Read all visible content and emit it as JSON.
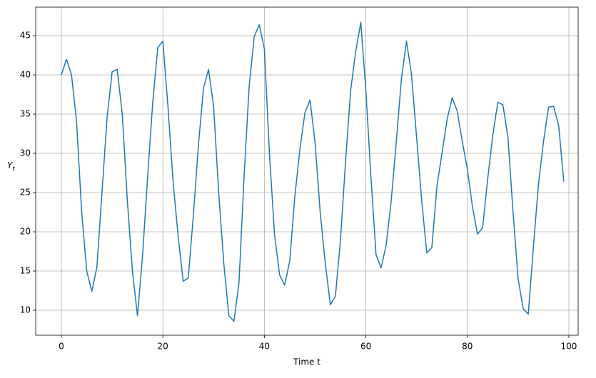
{
  "chart_data": {
    "type": "line",
    "xlabel": "Time t",
    "ylabel": "Yt",
    "x": [
      0,
      1,
      2,
      3,
      4,
      5,
      6,
      7,
      8,
      9,
      10,
      11,
      12,
      13,
      14,
      15,
      16,
      17,
      18,
      19,
      20,
      21,
      22,
      23,
      24,
      25,
      26,
      27,
      28,
      29,
      30,
      31,
      32,
      33,
      34,
      35,
      36,
      37,
      38,
      39,
      40,
      41,
      42,
      43,
      44,
      45,
      46,
      47,
      48,
      49,
      50,
      51,
      52,
      53,
      54,
      55,
      56,
      57,
      58,
      59,
      60,
      61,
      62,
      63,
      64,
      65,
      66,
      67,
      68,
      69,
      70,
      71,
      72,
      73,
      74,
      75,
      76,
      77,
      78,
      79,
      80,
      81,
      82,
      83,
      84,
      85,
      86,
      87,
      88,
      89,
      90,
      91,
      92,
      93,
      94,
      95,
      96,
      97,
      98,
      99
    ],
    "values": [
      40,
      42,
      40,
      34,
      22.5,
      15,
      12.4,
      15.5,
      25,
      34.5,
      40.4,
      40.7,
      35,
      24,
      15,
      9.3,
      17,
      27,
      36.5,
      43.5,
      44.3,
      36,
      26.5,
      19.5,
      13.7,
      14.1,
      22,
      31,
      38.3,
      40.7,
      36,
      25,
      16,
      9.3,
      8.6,
      13.5,
      27,
      38.5,
      44.9,
      46.4,
      43.3,
      30,
      19.7,
      14.5,
      13.2,
      16.3,
      24.5,
      30.5,
      35.2,
      36.8,
      31.3,
      22.5,
      16,
      10.7,
      11.8,
      19,
      29,
      38,
      43,
      46.7,
      38,
      27,
      17.1,
      15.4,
      18.3,
      24,
      31.5,
      39.5,
      44.3,
      40,
      32,
      24,
      17.3,
      18,
      25.8,
      30,
      34.3,
      37.1,
      35.4,
      31.5,
      28,
      23.2,
      19.7,
      20.5,
      26.7,
      32.3,
      36.5,
      36.2,
      32,
      22.5,
      14,
      10.2,
      9.5,
      18,
      26,
      31.5,
      35.9,
      36,
      33.5,
      26.4
    ],
    "color": "#1f77b4",
    "xlim": [
      -5.06,
      101.83
    ],
    "xticks": [
      0,
      20,
      40,
      60,
      80,
      100
    ],
    "ylim": [
      6.82,
      48.64
    ],
    "yticks": [
      10,
      15,
      20,
      25,
      30,
      35,
      40,
      45
    ],
    "grid": true
  }
}
